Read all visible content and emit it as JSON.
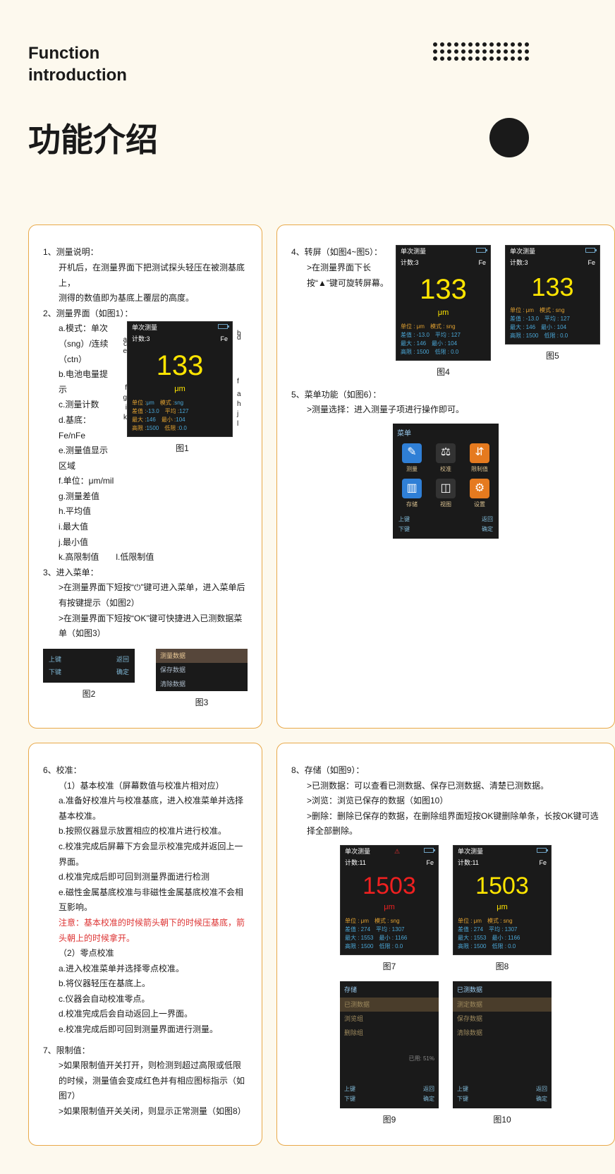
{
  "header": {
    "en_title_1": "Function",
    "en_title_2": "introduction",
    "cn_title": "功能介绍"
  },
  "colors": {
    "page_bg": "#fdf9ee",
    "panel_border": "#e8a94a",
    "device_bg": "#1a1a1a",
    "value_yellow": "#ffe500",
    "value_red": "#ef2020",
    "stat_blue": "#4aa6d6",
    "stat_label": "#e0a030"
  },
  "panel1": {
    "s1_title": "1、测量说明：",
    "s1_l1": "开机后，在测量界面下把测试探头轻压在被测基底上，",
    "s1_l2": "测得的数值即为基底上覆层的高度。",
    "s2_title": "2、测量界面（如图1）：",
    "s2_a": "a.模式：单次（sng）/连续（ctn）",
    "s2_b": "b.电池电量提示",
    "s2_c": "c.测量计数",
    "s2_d": "d.基底：Fe/nFe",
    "s2_e": "e.测量值显示区域",
    "s2_f": "f.单位：μm/mil",
    "s2_g": "g.测量差值",
    "s2_h": "h.平均值",
    "s2_i": "i.最大值",
    "s2_j": "j.最小值",
    "s2_k": "k.高限制值　　l.低限制值",
    "s3_title": "3、进入菜单：",
    "s3_l1": ">在测量界面下短按“⏻”键可进入菜单，进入菜单后有按键提示（如图2）",
    "s3_l2": ">在测量界面下短按“OK”键可快捷进入已测数据菜单（如图3）",
    "fig1_caption": "图1",
    "fig2_caption": "图2",
    "fig3_caption": "图3",
    "fig1": {
      "topbar_l": "单次测量",
      "count_l": "计数:3",
      "count_r": "Fe",
      "value": "133",
      "unit": "μm",
      "stats_l1a": "单位 :",
      "stats_l1av": "μm",
      "stats_l1b": "模式 :",
      "stats_l1bv": "sng",
      "stats_l2a": "差值 :",
      "stats_l2av": "-13.0",
      "stats_l2b": "平均 :",
      "stats_l2bv": "127",
      "stats_l3a": "最大 :",
      "stats_l3av": "146",
      "stats_l3b": "最小 :",
      "stats_l3bv": "104",
      "stats_l4a": "高限 :",
      "stats_l4av": "1500",
      "stats_l4b": "低限 :",
      "stats_l4bv": "0.0"
    },
    "fig2": {
      "r1l": "上键",
      "r1r": "返回",
      "r2l": "下键",
      "r2r": "确定"
    },
    "fig3": {
      "i1": "测量数据",
      "i2": "保存数据",
      "i3": "清除数据"
    }
  },
  "panel2": {
    "s4_title": "4、转屏（如图4~图5）：",
    "s4_l1": ">在测量界面下长按“▲”键可旋转屏幕。",
    "s5_title": "5、菜单功能（如图6）：",
    "s5_l1": ">测量选择：进入测量子项进行操作即可。",
    "fig4_caption": "图4",
    "fig5_caption": "图5",
    "fig6_caption": "",
    "fig4": {
      "topbar_l": "单次测量",
      "count_l": "计数:3",
      "count_r": "Fe",
      "value": "133",
      "unit": "μm",
      "u": "单位 : μm",
      "m": "模式 : sng",
      "d": "差值 : -13.0",
      "p": "平均 : 127",
      "mx": "最大 : 146",
      "mn": "最小 : 104",
      "hi": "高限 : 1500",
      "lo": "低限 : 0.0"
    },
    "fig5": {
      "topbar_l": "单次测量",
      "count_l": "计数:3",
      "count_r": "Fe",
      "value": "133",
      "unit": "",
      "u": "单位 : μm",
      "m": "模式 : sng",
      "d": "差值 : -13.0",
      "p": "平均 : 127",
      "mx": "最大 : 146",
      "mn": "最小 : 104",
      "hi": "高限 : 1500",
      "lo": "低限 : 0.0"
    },
    "fig6": {
      "title": "菜单",
      "icons": [
        {
          "bg": "#2f7fd6",
          "glyph": "✎",
          "label": "测量"
        },
        {
          "bg": "#333333",
          "glyph": "⚖",
          "label": "校准"
        },
        {
          "bg": "#e57a1f",
          "glyph": "⇵",
          "label": "限制值"
        },
        {
          "bg": "#2f7fd6",
          "glyph": "▥",
          "label": "存储"
        },
        {
          "bg": "#333333",
          "glyph": "◫",
          "label": "视图"
        },
        {
          "bg": "#e57a1f",
          "glyph": "⚙",
          "label": "设置"
        }
      ],
      "nav_l1": "上键",
      "nav_r1": "返回",
      "nav_l2": "下键",
      "nav_r2": "确定"
    }
  },
  "panel3": {
    "s6_title": "6、校准：",
    "s6_h1": "（1）基本校准（屏幕数值与校准片相对应）",
    "s6_a": "a.准备好校准片与校准基底，进入校准菜单并选择基本校准。",
    "s6_b": "b.按照仪器显示放置相应的校准片进行校准。",
    "s6_c": "c.校准完成后屏幕下方会显示校准完成并返回上一界面。",
    "s6_d": "d.校准完成后即可回到测量界面进行检测",
    "s6_e": "e.磁性金属基底校准与非磁性金属基底校准不会相互影响。",
    "s6_note": "注意：基本校准的时候箭头朝下的时候压基底，箭头朝上的时候拿开。",
    "s6_h2": "（2）零点校准",
    "s6_2a": "a.进入校准菜单并选择零点校准。",
    "s6_2b": "b.将仪器轻压在基底上。",
    "s6_2c": "c.仪器会自动校准零点。",
    "s6_2d": "d.校准完成后会自动返回上一界面。",
    "s6_2e": "e.校准完成后即可回到测量界面进行测量。",
    "s7_title": "7、限制值：",
    "s7_l1": ">如果限制值开关打开，则检测到超过高限或低限的时候，测量值会变成红色并有相应图标指示（如图7）",
    "s7_l2": ">如果限制值开关关闭，则显示正常测量（如图8）"
  },
  "panel4": {
    "s8_title": "8、存储（如图9）：",
    "s8_l1": ">已测数据：可以查看已测数据、保存已测数据、清楚已测数据。",
    "s8_l2": ">浏览：浏览已保存的数据（如图10）",
    "s8_l3": ">删除：删除已保存的数据，在删除组界面短按OK键删除单条，长按OK键可选择全部删除。",
    "fig7_caption": "图7",
    "fig8_caption": "图8",
    "fig9_caption": "图9",
    "fig10_caption": "图10",
    "fig7": {
      "topbar_l": "单次测量",
      "count_l": "计数:11",
      "count_r": "Fe",
      "value": "1503",
      "unit": "μm",
      "u": "单位 : μm",
      "m": "模式 : sng",
      "d": "差值 : 274",
      "p": "平均 : 1307",
      "mx": "最大 : 1553",
      "mn": "最小 : 1166",
      "hi": "高限 : 1500",
      "lo": "低限 : 0.0"
    },
    "fig8": {
      "topbar_l": "单次测量",
      "count_l": "计数:11",
      "count_r": "Fe",
      "value": "1503",
      "unit": "μm",
      "u": "单位 : μm",
      "m": "模式 : sng",
      "d": "差值 : 274",
      "p": "平均 : 1307",
      "mx": "最大 : 1553",
      "mn": "最小 : 1166",
      "hi": "高限 : 1500",
      "lo": "低限 : 0.0"
    },
    "fig9": {
      "hdr": "存储",
      "i1": "已测数据",
      "i2": "浏览组",
      "i3": "删除组",
      "pct": "已用: 51%",
      "nl1": "上键",
      "nr1": "返回",
      "nl2": "下键",
      "nr2": "确定"
    },
    "fig10": {
      "hdr": "已测数据",
      "i1": "测定数据",
      "i2": "保存数据",
      "i3": "清除数据",
      "nl1": "上键",
      "nr1": "返回",
      "nl2": "下键",
      "nr2": "确定"
    }
  }
}
